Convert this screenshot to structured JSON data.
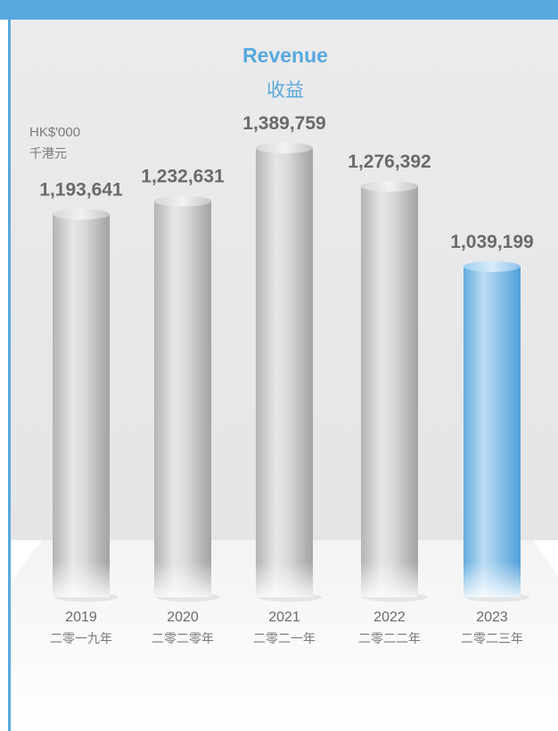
{
  "chart_data": {
    "type": "bar",
    "title": "Revenue",
    "subtitle": "收益",
    "unit_label": "HK$'000",
    "unit_label_zh": "千港元",
    "categories": [
      "2019",
      "2020",
      "2021",
      "2022",
      "2023"
    ],
    "categories_zh": [
      "二零一九年",
      "二零二零年",
      "二零二一年",
      "二零二二年",
      "二零二三年"
    ],
    "values": [
      1193641,
      1232631,
      1389759,
      1276392,
      1039199
    ],
    "value_labels": [
      "1,193,641",
      "1,232,631",
      "1,389,759",
      "1,276,392",
      "1,039,199"
    ],
    "highlight_index": 4,
    "colors": {
      "default": "#c8c8c8",
      "highlight": "#56a9df",
      "accent": "#56a9df"
    },
    "grid": false,
    "legend": "none"
  }
}
